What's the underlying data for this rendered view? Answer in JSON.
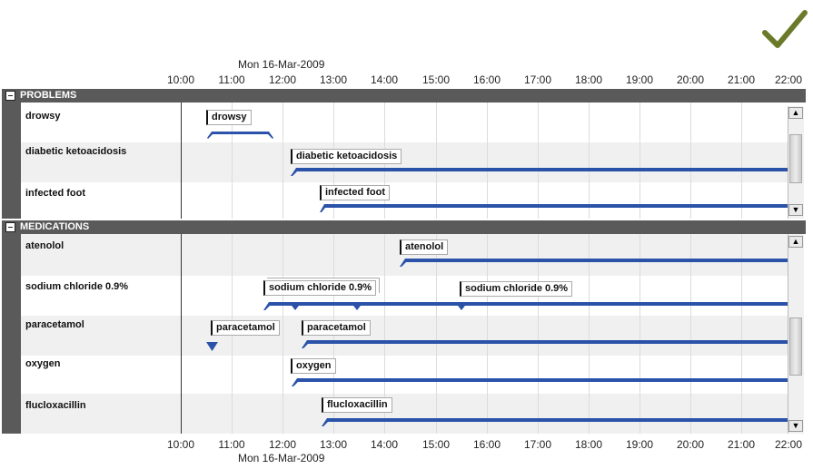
{
  "date_top": "Mon 16-Mar-2009",
  "date_bottom": "Mon 16-Mar-2009",
  "time_ticks": [
    "10:00",
    "11:00",
    "12:00",
    "13:00",
    "14:00",
    "15:00",
    "16:00",
    "17:00",
    "18:00",
    "19:00",
    "20:00",
    "21:00",
    "22:00"
  ],
  "colors": {
    "bar": "#2a52a8",
    "header": "#5a5a5a",
    "checkmark": "#6b7a2a"
  },
  "icons": {
    "check": "checkmark-icon",
    "collapse": "minus-box-icon",
    "scroll_up": "arrow-up-icon",
    "scroll_down": "arrow-down-icon"
  },
  "problems": {
    "title": "PROBLEMS",
    "rows": [
      {
        "label": "drowsy",
        "callouts": [
          "drowsy"
        ]
      },
      {
        "label": "diabetic ketoacidosis",
        "callouts": [
          "diabetic ketoacidosis"
        ]
      },
      {
        "label": "infected foot",
        "callouts": [
          "infected foot"
        ]
      }
    ]
  },
  "medications": {
    "title": "MEDICATIONS",
    "rows": [
      {
        "label": "atenolol",
        "callouts": [
          "atenolol"
        ]
      },
      {
        "label": "sodium chloride 0.9%",
        "callouts": [
          "sodium chloride 0.9%",
          "sodium chloride 0.9%"
        ]
      },
      {
        "label": "paracetamol",
        "callouts": [
          "paracetamol",
          "paracetamol"
        ]
      },
      {
        "label": "oxygen",
        "callouts": [
          "oxygen"
        ]
      },
      {
        "label": "flucloxacillin",
        "callouts": [
          "flucloxacillin"
        ]
      }
    ]
  },
  "scroll_arrows": {
    "up": "▲",
    "down": "▼"
  }
}
